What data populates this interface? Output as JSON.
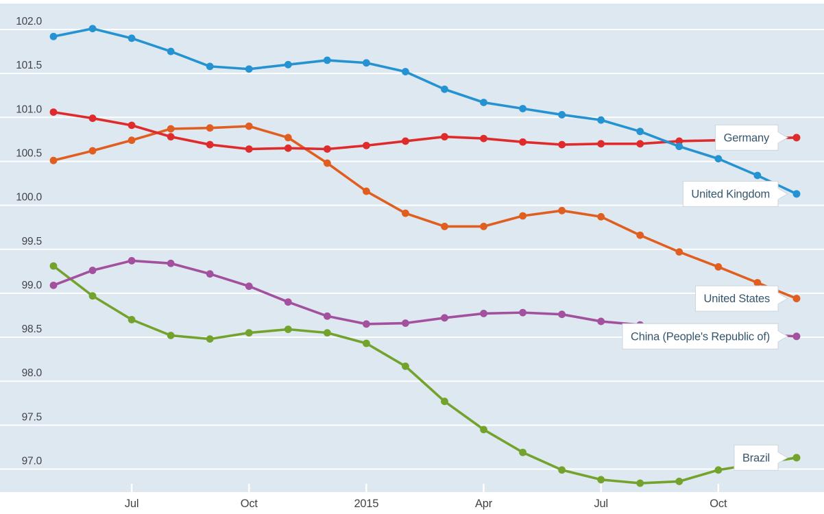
{
  "chart_data": {
    "type": "line",
    "title": "",
    "x_months": [
      "May 2014",
      "Jun 2014",
      "Jul 2014",
      "Aug 2014",
      "Sep 2014",
      "Oct 2014",
      "Nov 2014",
      "Dec 2014",
      "Jan 2015",
      "Feb 2015",
      "Mar 2015",
      "Apr 2015",
      "May 2015",
      "Jun 2015",
      "Jul 2015",
      "Aug 2015",
      "Sep 2015",
      "Oct 2015",
      "Nov 2015",
      "Dec 2015"
    ],
    "x_ticks": [
      {
        "index": 2,
        "label": "Jul"
      },
      {
        "index": 5,
        "label": "Oct"
      },
      {
        "index": 8,
        "label": "2015"
      },
      {
        "index": 11,
        "label": "Apr"
      },
      {
        "index": 14,
        "label": "Jul"
      },
      {
        "index": 17,
        "label": "Oct"
      }
    ],
    "y_ticks": [
      {
        "label": "102.0",
        "value": 102.0
      },
      {
        "label": "101.5",
        "value": 101.5
      },
      {
        "label": "101.0",
        "value": 101.0
      },
      {
        "label": "100.5",
        "value": 100.5
      },
      {
        "label": "100.0",
        "value": 100.0
      },
      {
        "label": "99.5",
        "value": 99.5
      },
      {
        "label": "99.0",
        "value": 99.0
      },
      {
        "label": "98.5",
        "value": 98.5
      },
      {
        "label": "98.0",
        "value": 98.0
      },
      {
        "label": "97.5",
        "value": 97.5
      },
      {
        "label": "97.0",
        "value": 97.0
      }
    ],
    "ylim": [
      96.74,
      102.29
    ],
    "grid": "horizontal-white-lines",
    "legend_position": "end-of-line-callouts",
    "series": [
      {
        "name": "Germany",
        "color": "#df2b2b",
        "values": [
          101.06,
          100.99,
          100.91,
          100.78,
          100.69,
          100.64,
          100.65,
          100.64,
          100.68,
          100.73,
          100.78,
          100.76,
          100.72,
          100.69,
          100.7,
          100.7,
          100.73,
          100.74,
          100.76,
          100.77
        ]
      },
      {
        "name": "United Kingdom",
        "color": "#2593d2",
        "values": [
          101.92,
          102.01,
          101.9,
          101.75,
          101.58,
          101.55,
          101.6,
          101.65,
          101.62,
          101.52,
          101.32,
          101.17,
          101.1,
          101.03,
          100.97,
          100.84,
          100.67,
          100.53,
          100.34,
          100.13
        ]
      },
      {
        "name": "United States",
        "color": "#e05f20",
        "values": [
          100.51,
          100.62,
          100.74,
          100.87,
          100.88,
          100.9,
          100.77,
          100.48,
          100.16,
          99.91,
          99.76,
          99.76,
          99.88,
          99.94,
          99.87,
          99.66,
          99.47,
          99.3,
          99.12,
          98.94
        ]
      },
      {
        "name": "China (People's Republic of)",
        "color": "#a3509e",
        "values": [
          99.09,
          99.26,
          99.37,
          99.34,
          99.22,
          99.08,
          98.9,
          98.74,
          98.65,
          98.66,
          98.72,
          98.77,
          98.78,
          98.76,
          98.68,
          98.64,
          98.6,
          98.56,
          98.53,
          98.51
        ]
      },
      {
        "name": "Brazil",
        "color": "#73a32c",
        "values": [
          99.31,
          98.97,
          98.7,
          98.52,
          98.48,
          98.55,
          98.59,
          98.55,
          98.43,
          98.17,
          97.77,
          97.45,
          97.19,
          96.99,
          96.88,
          96.84,
          96.86,
          96.99,
          97.06,
          97.13
        ]
      }
    ]
  },
  "colors": {
    "page_bg": "#ffffff",
    "plot_bg": "#dde8f0",
    "gridline": "#ffffff",
    "axis_text": "#424349",
    "callout_bg": "#ffffff",
    "callout_border": "#ccd5dc",
    "callout_text": "#35566d"
  }
}
